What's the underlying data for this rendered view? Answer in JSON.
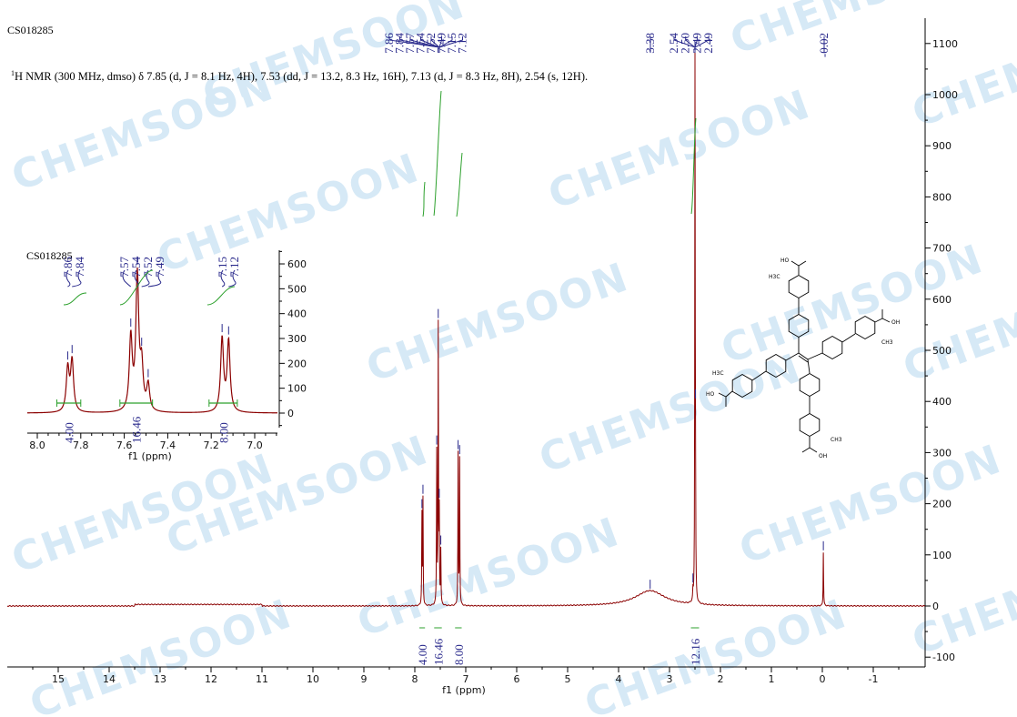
{
  "sample_id": "CS018285",
  "nmr_summary": {
    "sup": "1",
    "text": "H NMR (300 MHz, dmso) δ 7.85 (d, J = 8.1 Hz, 4H), 7.53 (dd, J = 13.2, 8.3 Hz, 16H), 7.13 (d, J = 8.3 Hz, 8H), 2.54 (s, 12H)."
  },
  "watermark": "CHEMSOON",
  "colors": {
    "spectrum": "#8b0000",
    "peak_labels": "#2a2a8c",
    "integrals": "#2ca02c",
    "watermark": "#d6e9f6"
  },
  "molecule_labels": {
    "oh_left": "HO",
    "oh_right": "OH",
    "methyl_left": "H3C",
    "methyl_right": "CH3"
  },
  "chart_data": [
    {
      "type": "line",
      "title": "",
      "xlabel": "f1 (ppm)",
      "ylabel": "",
      "xlim": [
        16,
        -2
      ],
      "x_reversed": true,
      "ylim": [
        -100,
        1100
      ],
      "x_ticks": [
        "15",
        "14",
        "13",
        "12",
        "11",
        "10",
        "9",
        "8",
        "7",
        "6",
        "5",
        "4",
        "3",
        "2",
        "1",
        "0",
        "-1"
      ],
      "y_ticks": [
        "-100",
        "0",
        "100",
        "200",
        "300",
        "400",
        "500",
        "600",
        "700",
        "800",
        "900",
        "1000",
        "1100"
      ],
      "y_axis_side": "right",
      "grid": false,
      "peaks": [
        {
          "ppm": 7.86,
          "height": 175
        },
        {
          "ppm": 7.84,
          "height": 205
        },
        {
          "ppm": 7.57,
          "height": 295
        },
        {
          "ppm": 7.54,
          "height": 540
        },
        {
          "ppm": 7.52,
          "height": 170
        },
        {
          "ppm": 7.49,
          "height": 105
        },
        {
          "ppm": 7.15,
          "height": 295
        },
        {
          "ppm": 7.12,
          "height": 285
        },
        {
          "ppm": 3.38,
          "height": 30,
          "broad": true
        },
        {
          "ppm": 2.54,
          "height": 20
        },
        {
          "ppm": 2.5,
          "height": 1040
        },
        {
          "ppm": 2.49,
          "height": 190
        },
        {
          "ppm": -0.02,
          "height": 105
        }
      ],
      "peak_labels": [
        {
          "group": "aromatic",
          "values": [
            "7.86",
            "7.84",
            "7.57",
            "7.54",
            "7.52",
            "7.49",
            "7.15",
            "7.12"
          ]
        },
        {
          "group": "water",
          "values": [
            "3.38"
          ]
        },
        {
          "group": "methyl",
          "values": [
            "2.54",
            "2.50",
            "2.49",
            "2.49"
          ]
        },
        {
          "group": "tms",
          "values": [
            "-0.02"
          ]
        }
      ],
      "integrals": [
        {
          "from": 7.91,
          "to": 7.8,
          "value": "4.00"
        },
        {
          "from": 7.62,
          "to": 7.47,
          "value": "16.46"
        },
        {
          "from": 7.21,
          "to": 7.08,
          "value": "8.00"
        },
        {
          "from": 2.58,
          "to": 2.42,
          "value": "12.16"
        }
      ]
    },
    {
      "type": "line",
      "title": "CS018285",
      "xlabel": "f1 (ppm)",
      "xlim": [
        8.05,
        6.9
      ],
      "ylim": [
        -50,
        650
      ],
      "x_ticks": [
        "8.0",
        "7.8",
        "7.6",
        "7.4",
        "7.2",
        "7.0"
      ],
      "y_ticks": [
        "0",
        "100",
        "200",
        "300",
        "400",
        "500",
        "600"
      ],
      "peak_labels": [
        "7.86",
        "7.84",
        "7.57",
        "7.54",
        "7.52",
        "7.49",
        "7.15",
        "7.12"
      ],
      "integrals": [
        "4.00",
        "16.46",
        "8.00"
      ]
    }
  ]
}
